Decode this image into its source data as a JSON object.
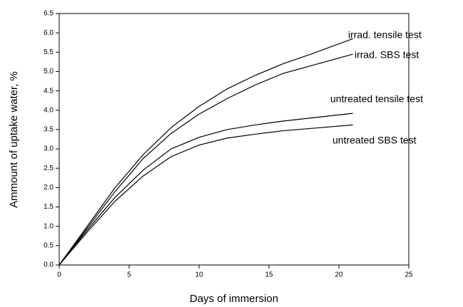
{
  "chart_data": {
    "type": "line",
    "xlabel": "Days of immersion",
    "ylabel": "Ammount of uptake water, %",
    "x": [
      0,
      2,
      4,
      6,
      8,
      10,
      12,
      14,
      16,
      18,
      21
    ],
    "series": [
      {
        "name": "irrad. tensile test",
        "color": "#000000",
        "values": [
          0,
          1.0,
          2.0,
          2.85,
          3.55,
          4.1,
          4.55,
          4.9,
          5.2,
          5.45,
          5.85
        ]
      },
      {
        "name": "irrad. SBS test",
        "color": "#000000",
        "values": [
          0,
          0.95,
          1.9,
          2.75,
          3.4,
          3.9,
          4.3,
          4.65,
          4.95,
          5.15,
          5.45
        ]
      },
      {
        "name": "untreated tensile test",
        "color": "#000000",
        "values": [
          0,
          0.9,
          1.75,
          2.45,
          3.0,
          3.3,
          3.5,
          3.62,
          3.72,
          3.8,
          3.92
        ]
      },
      {
        "name": "untreated SBS test",
        "color": "#000000",
        "values": [
          0,
          0.85,
          1.65,
          2.3,
          2.8,
          3.1,
          3.28,
          3.38,
          3.47,
          3.53,
          3.62
        ]
      }
    ],
    "xlim": [
      0,
      25
    ],
    "xticks": [
      0,
      5,
      10,
      15,
      20,
      25
    ],
    "ylim": [
      0,
      6.5
    ],
    "yticks": [
      {
        "value": 0,
        "label": "0.0"
      },
      0.5,
      {
        "value": 1,
        "label": "1.0"
      },
      1.5,
      {
        "value": 2,
        "label": "2.0"
      },
      2.5,
      {
        "value": 3,
        "label": "3.0"
      },
      3.5,
      {
        "value": 4,
        "label": "4.0"
      },
      4.5,
      {
        "value": 5,
        "label": "5.0"
      },
      5.5,
      {
        "value": 6,
        "label": "6.0"
      },
      6.5
    ],
    "grid": false
  }
}
